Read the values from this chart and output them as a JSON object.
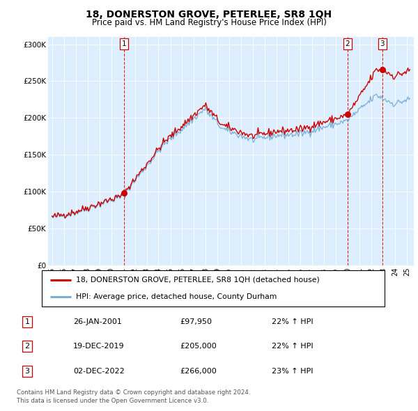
{
  "title": "18, DONERSTON GROVE, PETERLEE, SR8 1QH",
  "subtitle": "Price paid vs. HM Land Registry's House Price Index (HPI)",
  "sale_dates": [
    "2001-01-26",
    "2019-12-19",
    "2022-12-02"
  ],
  "sale_prices": [
    97950,
    205000,
    266000
  ],
  "sale_labels": [
    "1",
    "2",
    "3"
  ],
  "sale_info": [
    [
      "1",
      "26-JAN-2001",
      "£97,950",
      "22% ↑ HPI"
    ],
    [
      "2",
      "19-DEC-2019",
      "£205,000",
      "22% ↑ HPI"
    ],
    [
      "3",
      "02-DEC-2022",
      "£266,000",
      "23% ↑ HPI"
    ]
  ],
  "legend_line1": "18, DONERSTON GROVE, PETERLEE, SR8 1QH (detached house)",
  "legend_line2": "HPI: Average price, detached house, County Durham",
  "footer_line1": "Contains HM Land Registry data © Crown copyright and database right 2024.",
  "footer_line2": "This data is licensed under the Open Government Licence v3.0.",
  "price_line_color": "#cc0000",
  "hpi_line_color": "#7aaed4",
  "marker_color": "#cc0000",
  "vline_color": "#cc0000",
  "background_color": "#ffffff",
  "plot_bg_color": "#ddeeff",
  "ylim": [
    0,
    310000
  ],
  "yticks": [
    0,
    50000,
    100000,
    150000,
    200000,
    250000,
    300000
  ],
  "ytick_labels": [
    "£0",
    "£50K",
    "£100K",
    "£150K",
    "£200K",
    "£250K",
    "£300K"
  ]
}
